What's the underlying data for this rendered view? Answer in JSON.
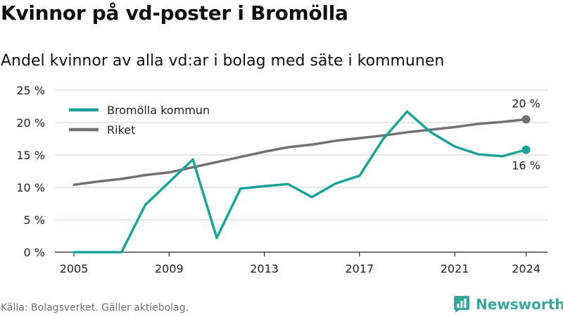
{
  "title": "Kvinnor på vd-poster i Bromölla",
  "subtitle": "Andel kvinnor av alla vd:ar i bolag med säte i kommunen",
  "source": "Källa: Bolagsverket. Gäller aktiebolag.",
  "brand": {
    "name": "Newsworthy",
    "icon": "newsworthy-logo-icon"
  },
  "colors": {
    "bromolla": "#1aa397",
    "riket": "#717075",
    "grid": "#d0d0d0",
    "axis": "#222222",
    "text": "#222222"
  },
  "chart_data": {
    "type": "line",
    "x": [
      2005,
      2006,
      2007,
      2008,
      2009,
      2010,
      2011,
      2012,
      2013,
      2014,
      2015,
      2016,
      2017,
      2018,
      2019,
      2020,
      2021,
      2022,
      2023,
      2024
    ],
    "xticks": [
      2005,
      2009,
      2013,
      2017,
      2021,
      2024
    ],
    "xtick_labels": [
      "2005",
      "2009",
      "2013",
      "2017",
      "2021",
      "2024"
    ],
    "yticks": [
      0,
      5,
      10,
      15,
      20,
      25
    ],
    "ytick_labels": [
      "0 %",
      "5 %",
      "10 %",
      "15 %",
      "20 %",
      "25 %"
    ],
    "ylim": [
      0,
      25
    ],
    "xlim": [
      2004.2,
      2024.9
    ],
    "grid": true,
    "legend_position": "top-left",
    "series": [
      {
        "name": "Bromölla kommun",
        "color": "#1aa397",
        "values": [
          0,
          0,
          0,
          7.3,
          10.8,
          14.3,
          2.2,
          9.8,
          10.2,
          10.5,
          8.5,
          10.6,
          11.8,
          17.5,
          21.7,
          18.5,
          16.3,
          15.1,
          14.8,
          15.8
        ],
        "end_label": "16 %",
        "end_label_position": "below"
      },
      {
        "name": "Riket",
        "color": "#717075",
        "values": [
          10.4,
          10.9,
          11.3,
          11.9,
          12.3,
          13.1,
          13.9,
          14.7,
          15.5,
          16.2,
          16.6,
          17.2,
          17.6,
          18.0,
          18.5,
          18.9,
          19.3,
          19.8,
          20.1,
          20.5
        ],
        "end_label": "20 %",
        "end_label_position": "above"
      }
    ]
  }
}
